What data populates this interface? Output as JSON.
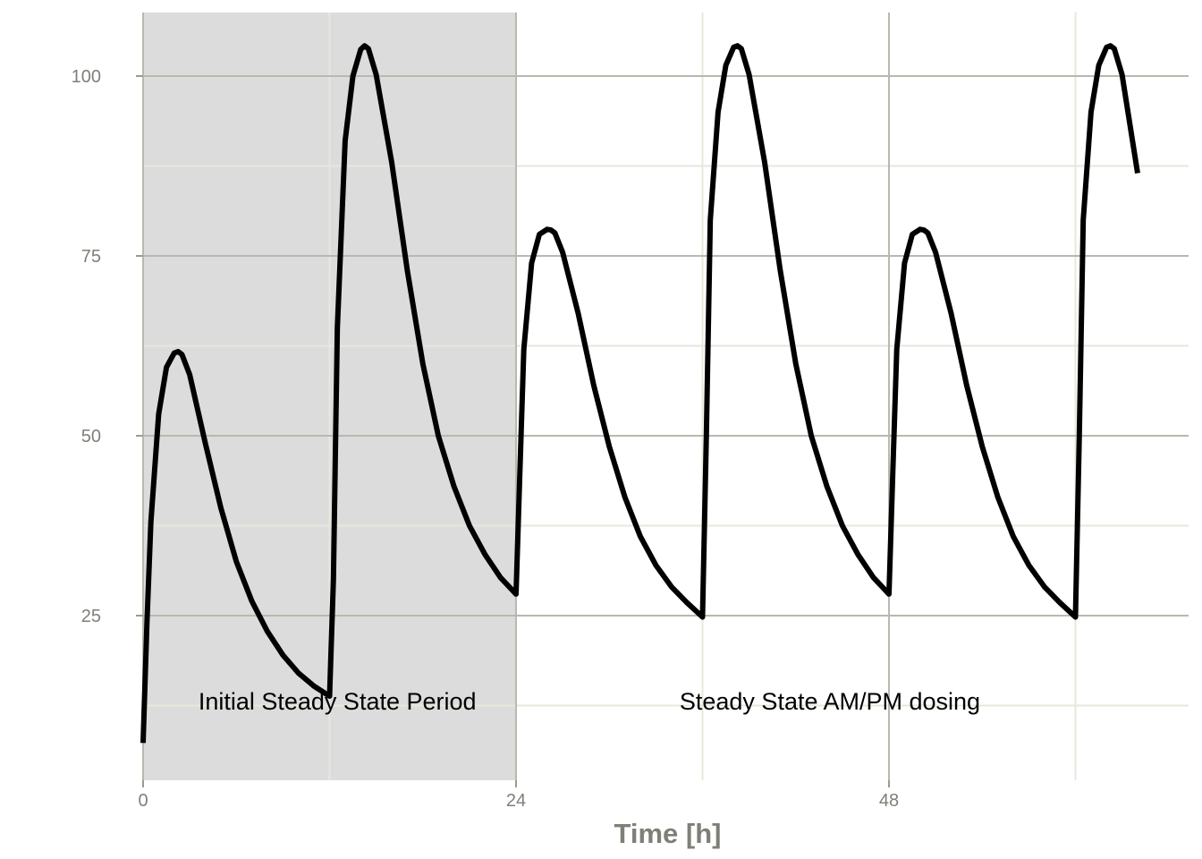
{
  "chart_data": {
    "type": "line",
    "xlabel": "Time [h]",
    "ylabel": "",
    "xlim": [
      0,
      67.5
    ],
    "ylim": [
      8,
      108.5
    ],
    "x_ticks": [
      0,
      24,
      48
    ],
    "x_minor_ticks": [
      12,
      36,
      60
    ],
    "y_ticks": [
      25,
      50,
      75,
      100
    ],
    "y_minor_ticks": [
      12.5,
      37.5,
      62.5,
      87.5
    ],
    "grid": true,
    "legend": "none",
    "shaded_region": {
      "x_start": 0,
      "x_end": 24,
      "color": "#dcdcdc"
    },
    "annotations": [
      {
        "text": "Initial Steady State Period",
        "x": 12.5,
        "y": 13.2
      },
      {
        "text": "Steady State AM/PM dosing",
        "x": 44.2,
        "y": 13.2
      }
    ],
    "series": [
      {
        "color": "#000000",
        "x": [
          0,
          0.25,
          0.5,
          1,
          1.5,
          2,
          2.25,
          2.5,
          3,
          4,
          5,
          6,
          7,
          8,
          9,
          10,
          11,
          12,
          12.25,
          12.5,
          13,
          13.5,
          14,
          14.25,
          14.5,
          15,
          16,
          17,
          18,
          19,
          20,
          21,
          22,
          23,
          24,
          24.25,
          24.5,
          25,
          25.5,
          26,
          26.25,
          26.5,
          27,
          28,
          29,
          30,
          31,
          32,
          33,
          34,
          35,
          36,
          36.25,
          36.5,
          37,
          37.5,
          38,
          38.25,
          38.5,
          39,
          40,
          41,
          42,
          43,
          44,
          45,
          46,
          47,
          48,
          48.25,
          48.5,
          49,
          49.5,
          50,
          50.25,
          50.5,
          51,
          52,
          53,
          54,
          55,
          56,
          57,
          58,
          59,
          60,
          60.25,
          60.5,
          61,
          61.5,
          62,
          62.25,
          62.5,
          63,
          64
        ],
        "values": [
          7.3,
          24,
          38,
          53,
          59.5,
          61.5,
          61.7,
          61.3,
          58.5,
          49,
          40,
          32.5,
          27,
          22.8,
          19.5,
          17,
          15.2,
          13.8,
          30,
          65,
          91,
          100,
          103.7,
          104.2,
          103.8,
          100.2,
          88,
          73,
          60,
          50,
          43,
          37.5,
          33.5,
          30.3,
          28,
          45,
          62,
          74,
          78,
          78.7,
          78.6,
          78.2,
          75.5,
          67,
          57,
          48.5,
          41.5,
          36,
          32,
          29,
          26.8,
          24.8,
          50,
          80,
          95,
          101.5,
          104,
          104.2,
          103.8,
          100.2,
          88,
          73,
          60,
          50,
          43,
          37.5,
          33.5,
          30.3,
          28,
          45,
          62,
          74,
          78,
          78.7,
          78.6,
          78.2,
          75.5,
          67,
          57,
          48.5,
          41.5,
          36,
          32,
          29,
          26.8,
          24.8,
          50,
          80,
          95,
          101.5,
          104,
          104.2,
          103.8,
          100.2,
          86.5
        ]
      }
    ]
  }
}
